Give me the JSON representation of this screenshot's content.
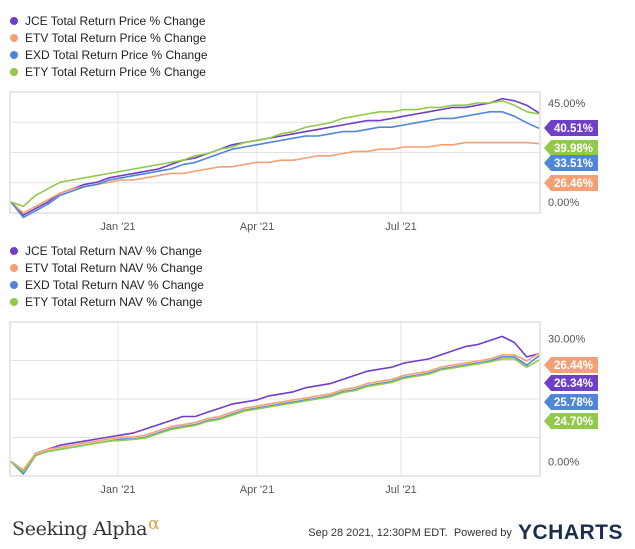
{
  "chart_data": [
    {
      "type": "line",
      "legend_placement": "top-left",
      "x_tick_labels": [
        "Jan '21",
        "Apr '21",
        "Jul '21"
      ],
      "y_tick_labels": [
        "45.00%",
        "0.00%"
      ],
      "ylim": [
        -5,
        50
      ],
      "series": [
        {
          "name": "JCE Total Return Price % Change",
          "color": "#6f3fc7",
          "end_label": "40.51%",
          "values": [
            0,
            -6,
            -3,
            0,
            4,
            6,
            8,
            9,
            11,
            12,
            13,
            14,
            15,
            17,
            19,
            20,
            22,
            24,
            26,
            27,
            28,
            29,
            30,
            31,
            32,
            33,
            34,
            35,
            36,
            37,
            37,
            38,
            39,
            40,
            41,
            42,
            43,
            43,
            44,
            45,
            47,
            46,
            44,
            40.5
          ]
        },
        {
          "name": "ETV Total Return Price % Change",
          "color": "#f5a074",
          "end_label": "26.46%",
          "values": [
            0,
            -5,
            -2,
            1,
            4,
            6,
            7,
            8,
            9,
            10,
            10,
            11,
            12,
            13,
            13,
            14,
            15,
            16,
            16,
            17,
            18,
            18,
            19,
            19,
            20,
            21,
            21,
            22,
            23,
            23,
            24,
            24,
            25,
            25,
            25,
            26,
            26,
            27,
            27,
            27,
            27,
            27,
            27,
            26.5
          ]
        },
        {
          "name": "EXD Total Return Price % Change",
          "color": "#4f86d9",
          "end_label": "33.51%",
          "values": [
            0,
            -7,
            -4,
            -1,
            3,
            5,
            7,
            8,
            10,
            11,
            12,
            13,
            14,
            15,
            17,
            18,
            20,
            22,
            24,
            25,
            26,
            27,
            28,
            29,
            30,
            30,
            31,
            32,
            32,
            33,
            34,
            34,
            35,
            36,
            37,
            38,
            38,
            39,
            40,
            41,
            41,
            39,
            36,
            33.5
          ]
        },
        {
          "name": "ETY Total Return Price % Change",
          "color": "#92c94a",
          "end_label": "39.98%",
          "values": [
            0,
            -2,
            3,
            6,
            9,
            10,
            11,
            12,
            13,
            14,
            15,
            16,
            17,
            18,
            19,
            21,
            22,
            24,
            25,
            27,
            28,
            29,
            31,
            32,
            34,
            35,
            36,
            38,
            39,
            40,
            41,
            41,
            42,
            42,
            43,
            43,
            44,
            44,
            45,
            45,
            46,
            44,
            41,
            40
          ]
        }
      ]
    },
    {
      "type": "line",
      "legend_placement": "top-left",
      "x_tick_labels": [
        "Jan '21",
        "Apr '21",
        "Jul '21"
      ],
      "y_tick_labels": [
        "30.00%",
        "0.00%"
      ],
      "ylim": [
        -3.5,
        34
      ],
      "series": [
        {
          "name": "JCE Total Return NAV % Change",
          "color": "#6f3fc7",
          "end_label": "26.34%",
          "values": [
            0,
            -2.5,
            2,
            3,
            4,
            4.5,
            5,
            5.5,
            6,
            6.5,
            7,
            8,
            9,
            10,
            11,
            11,
            12,
            13,
            14,
            14.5,
            15,
            16,
            16.5,
            17,
            18,
            18.5,
            19,
            20,
            21,
            22,
            22.5,
            23,
            24,
            24.5,
            25,
            26,
            27,
            28,
            28.5,
            29.5,
            30.5,
            29,
            25.5,
            26.3
          ]
        },
        {
          "name": "ETV Total Return NAV % Change",
          "color": "#f5a074",
          "end_label": "26.44%",
          "values": [
            0,
            -2,
            2,
            3,
            3.5,
            4,
            4.5,
            5,
            5.5,
            6,
            6,
            6.5,
            7.5,
            8.5,
            9,
            9.5,
            10.5,
            11,
            12,
            13,
            13.5,
            14,
            14.5,
            15,
            15.5,
            16,
            16.5,
            17.5,
            18,
            19,
            19.5,
            20,
            21,
            21.5,
            22,
            23,
            23.5,
            24,
            24.5,
            25,
            26,
            26,
            24.5,
            26.4
          ]
        },
        {
          "name": "EXD Total Return NAV % Change",
          "color": "#4f86d9",
          "end_label": "25.78%",
          "values": [
            0,
            -3,
            1.5,
            2.5,
            3,
            3.5,
            4,
            4.5,
            5,
            5.5,
            5.5,
            6,
            7,
            8,
            8.5,
            9,
            10,
            10.5,
            11.5,
            12.5,
            13,
            13.5,
            14,
            14.5,
            15,
            15.5,
            16,
            17,
            17.5,
            18.5,
            19,
            19.5,
            20.5,
            21,
            21.5,
            22.5,
            23,
            23.5,
            24,
            24.5,
            25.5,
            25.5,
            23.5,
            25.8
          ]
        },
        {
          "name": "ETY Total Return NAV % Change",
          "color": "#92c94a",
          "end_label": "24.70%",
          "values": [
            0,
            -2.5,
            1.5,
            2.5,
            3,
            3.5,
            4,
            4.5,
            5,
            5.2,
            5.4,
            5.8,
            6.8,
            7.8,
            8.3,
            8.8,
            9.8,
            10.3,
            11.3,
            12.3,
            12.8,
            13.3,
            13.8,
            14.3,
            14.8,
            15.3,
            15.8,
            16.8,
            17.3,
            18.3,
            18.8,
            19.3,
            20.3,
            20.8,
            21.3,
            22.3,
            22.8,
            23.3,
            23.8,
            24.3,
            25,
            25,
            23,
            24.7
          ]
        }
      ]
    }
  ],
  "footer": {
    "brand_left": "Seeking Alpha",
    "brand_left_symbol": "α",
    "timestamp": "Sep 28 2021, 12:30PM EDT.",
    "powered_by": "Powered by",
    "brand_right": "YCHARTS"
  }
}
